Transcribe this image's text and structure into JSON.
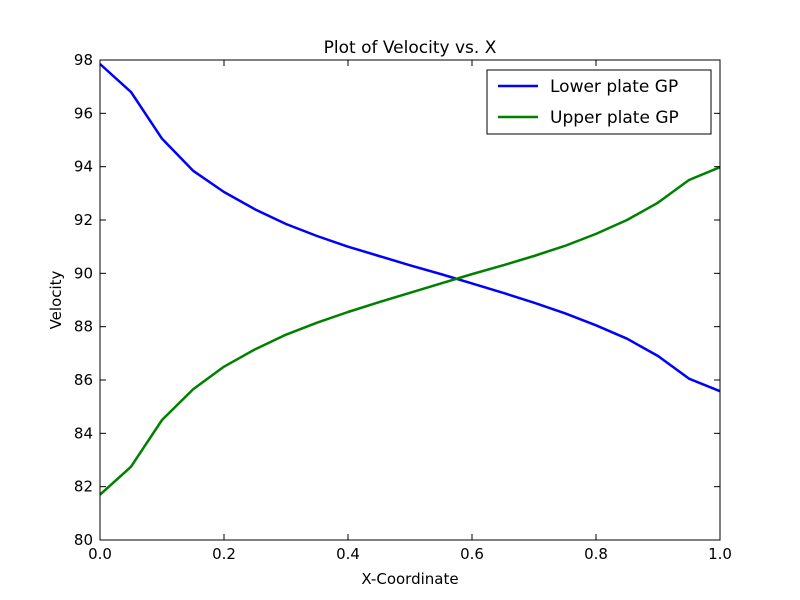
{
  "chart_data": {
    "type": "line",
    "title": "Plot of Velocity vs. X",
    "xlabel": "X-Coordinate",
    "ylabel": "Velocity",
    "xlim": [
      0.0,
      1.0
    ],
    "ylim": [
      80,
      98
    ],
    "xticks": [
      "0.0",
      "0.2",
      "0.4",
      "0.6",
      "0.8",
      "1.0"
    ],
    "yticks": [
      "80",
      "82",
      "84",
      "86",
      "88",
      "90",
      "92",
      "94",
      "96",
      "98"
    ],
    "grid": false,
    "legend_position": "top-right",
    "x": [
      0.0,
      0.05,
      0.1,
      0.15,
      0.2,
      0.25,
      0.3,
      0.35,
      0.4,
      0.45,
      0.5,
      0.55,
      0.6,
      0.65,
      0.7,
      0.75,
      0.8,
      0.85,
      0.9,
      0.95,
      1.0
    ],
    "series": [
      {
        "name": "Lower plate GP",
        "color": "#0000ff",
        "values": [
          97.85,
          96.8,
          95.05,
          93.85,
          93.05,
          92.4,
          91.85,
          91.4,
          91.0,
          90.65,
          90.3,
          89.97,
          89.62,
          89.27,
          88.9,
          88.5,
          88.05,
          87.55,
          86.9,
          86.05,
          85.58
        ]
      },
      {
        "name": "Upper plate GP",
        "color": "#008000",
        "values": [
          81.7,
          82.75,
          84.5,
          85.65,
          86.5,
          87.15,
          87.7,
          88.15,
          88.55,
          88.92,
          89.27,
          89.62,
          89.97,
          90.3,
          90.65,
          91.03,
          91.48,
          92.0,
          92.65,
          93.5,
          93.98
        ]
      }
    ]
  }
}
